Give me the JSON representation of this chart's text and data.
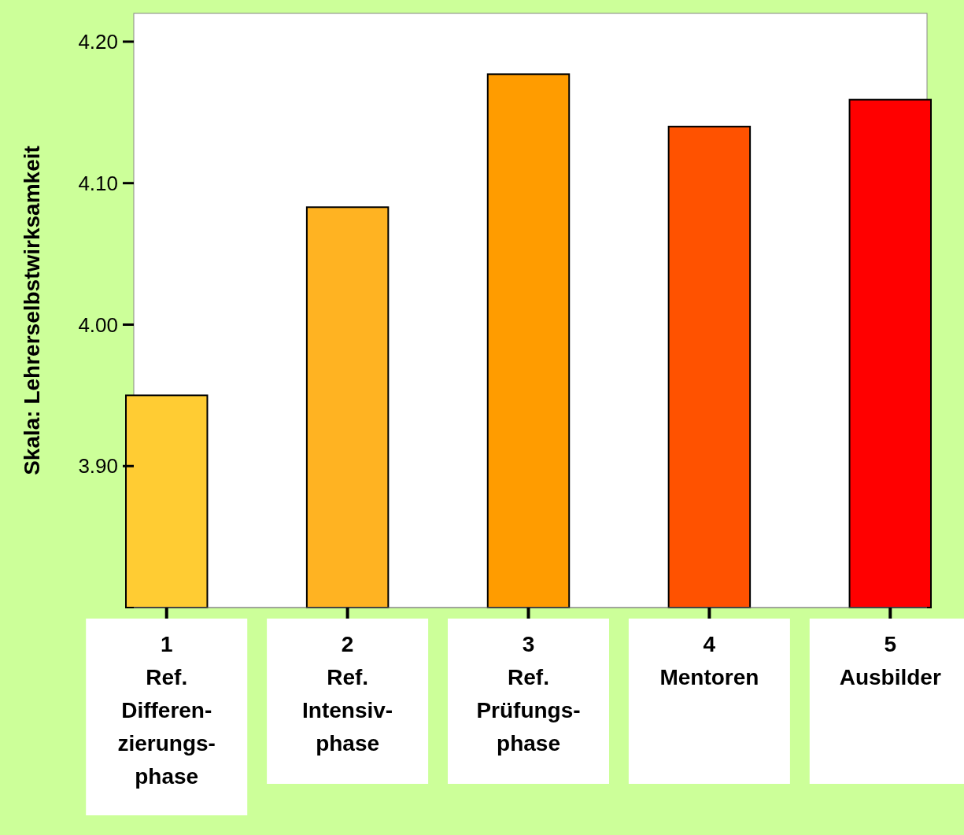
{
  "chart_data": {
    "type": "bar",
    "ylabel": "Skala: Lehrerselbstwirksamkeit",
    "categories": [
      "1\nRef.\nDifferen-\nzierungs-\nphase",
      "2\nRef.\nIntensiv-\nphase",
      "3\nRef.\nPrüfungs-\nphase",
      "4\nMentoren",
      "5\nAusbilder"
    ],
    "values": [
      3.95,
      4.083,
      4.177,
      4.14,
      4.159
    ],
    "colors": [
      "#ffcc33",
      "#ffb322",
      "#ff9c00",
      "#ff5200",
      "#ff0000"
    ],
    "ylim": [
      3.8,
      4.22
    ],
    "yticks": [
      {
        "value": 3.9,
        "label": "3.90"
      },
      {
        "value": 4.0,
        "label": "4.00"
      },
      {
        "value": 4.1,
        "label": "4.10"
      },
      {
        "value": 4.2,
        "label": "4.20"
      }
    ],
    "grid": false
  }
}
